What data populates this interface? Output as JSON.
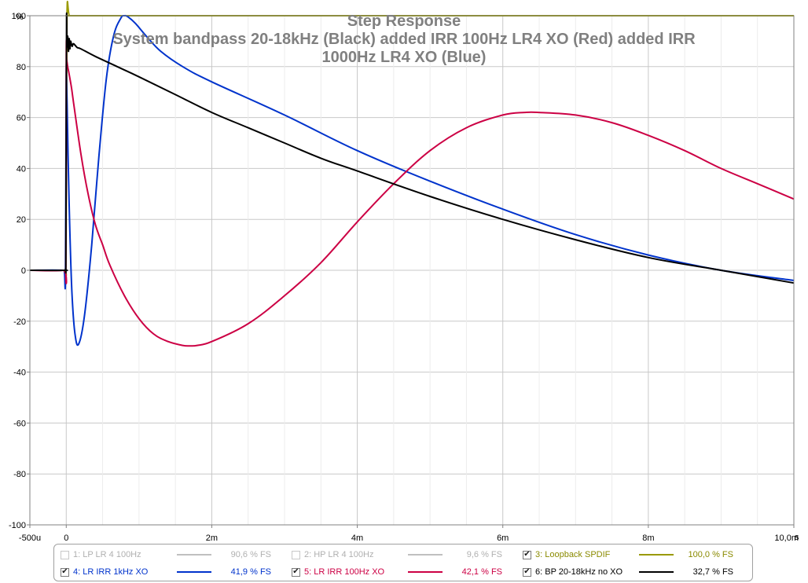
{
  "chart_data": {
    "type": "line",
    "title": "Step Response",
    "subtitle_line1": "System bandpass 20-18kHz (Black) added IRR 100Hz LR4 XO (Red) added IRR",
    "subtitle_line2": "1000Hz LR4 XO (Blue)",
    "ylabel": "%",
    "xlabel": "s",
    "xlim": [
      -500,
      10000
    ],
    "ylim": [
      -100,
      100
    ],
    "grid": true,
    "x_ticks": [
      {
        "value": -500,
        "label": "-500u"
      },
      {
        "value": 0,
        "label": "0"
      },
      {
        "value": 2000,
        "label": "2m"
      },
      {
        "value": 4000,
        "label": "4m"
      },
      {
        "value": 6000,
        "label": "6m"
      },
      {
        "value": 8000,
        "label": "8m"
      },
      {
        "value": 10000,
        "label": "10,0m"
      }
    ],
    "y_ticks": [
      {
        "value": 100,
        "label": "100"
      },
      {
        "value": 80,
        "label": "80"
      },
      {
        "value": 60,
        "label": "60"
      },
      {
        "value": 40,
        "label": "40"
      },
      {
        "value": 20,
        "label": "20"
      },
      {
        "value": 0,
        "label": "0"
      },
      {
        "value": -20,
        "label": "-20"
      },
      {
        "value": -40,
        "label": "-40"
      },
      {
        "value": -60,
        "label": "-60"
      },
      {
        "value": -80,
        "label": "-80"
      },
      {
        "value": -100,
        "label": "-100"
      }
    ],
    "series": [
      {
        "name": "3: Loopback SPDIF",
        "color": "#9a9a00",
        "x": [
          -500,
          -50,
          -10,
          0,
          10,
          50,
          200,
          1000,
          10000
        ],
        "y": [
          0,
          0,
          0,
          30,
          100,
          100,
          100,
          100,
          100
        ]
      },
      {
        "name": "4: LR IRR 1kHz XO",
        "color": "#0033cc",
        "x": [
          -500,
          -50,
          -25,
          -12,
          -5,
          0,
          5,
          12,
          25,
          50,
          80,
          120,
          170,
          250,
          350,
          450,
          550,
          650,
          750,
          800,
          850,
          950,
          1100,
          1300,
          1600,
          2000,
          3000,
          4000,
          5000,
          6000,
          7000,
          8000,
          9000,
          10000
        ],
        "y": [
          0,
          0,
          -1,
          -5,
          35,
          78,
          75,
          65,
          45,
          15,
          -10,
          -25,
          -29,
          -18,
          10,
          45,
          75,
          92,
          99,
          100,
          99.5,
          97,
          92,
          86,
          80,
          74,
          61,
          47,
          35,
          24,
          14,
          6,
          0,
          -4
        ]
      },
      {
        "name": "5: LR IRR 100Hz XO",
        "color": "#cc0044",
        "x": [
          -500,
          -50,
          -5,
          0,
          5,
          10,
          20,
          40,
          70,
          100,
          200,
          300,
          400,
          500,
          600,
          800,
          1000,
          1200,
          1400,
          1600,
          1700,
          1800,
          2000,
          2500,
          3000,
          3500,
          4000,
          4500,
          5000,
          5500,
          6000,
          6300,
          6500,
          7000,
          7500,
          8000,
          8500,
          9000,
          9500,
          10000
        ],
        "y": [
          0,
          0,
          2,
          84,
          83,
          82,
          80,
          77,
          72,
          66,
          46,
          30,
          18,
          10,
          2,
          -10,
          -19,
          -25,
          -28,
          -29.5,
          -29.7,
          -29.5,
          -28,
          -21,
          -10,
          3,
          19,
          34,
          47,
          56,
          61,
          62,
          62,
          61,
          58,
          53,
          47,
          40,
          34,
          28
        ]
      },
      {
        "name": "6: BP 20-18kHz no XO",
        "color": "#000000",
        "x": [
          -500,
          -30,
          -10,
          -5,
          0,
          5,
          10,
          20,
          30,
          40,
          50,
          60,
          80,
          100,
          150,
          200,
          400,
          700,
          1000,
          1500,
          2000,
          2500,
          3000,
          3500,
          4000,
          5000,
          6000,
          7000,
          8000,
          9000,
          10000
        ],
        "y": [
          0,
          0,
          0.5,
          5,
          60,
          100,
          88,
          92,
          86,
          91,
          87,
          90,
          88,
          89,
          87.5,
          87,
          84,
          80,
          76,
          69,
          62,
          56,
          50,
          44,
          39,
          29,
          20,
          12,
          5,
          0,
          -5
        ]
      }
    ]
  },
  "legend": {
    "items": [
      {
        "label": "1: LP LR 4 100Hz",
        "value": "90,6 % FS",
        "checked": false,
        "color": "#c0c0c0",
        "text_color": "#b0b0b0"
      },
      {
        "label": "2: HP LR 4 100Hz",
        "value": "9,6 % FS",
        "checked": false,
        "color": "#c0c0c0",
        "text_color": "#b0b0b0"
      },
      {
        "label": "3: Loopback SPDIF",
        "value": "100,0 % FS",
        "checked": true,
        "color": "#9a9a00",
        "text_color": "#8a8a00"
      },
      {
        "label": "4: LR IRR 1kHz XO",
        "value": "41,9 % FS",
        "checked": true,
        "color": "#0033cc",
        "text_color": "#0033cc"
      },
      {
        "label": "5: LR IRR 100Hz XO",
        "value": "42,1 % FS",
        "checked": true,
        "color": "#cc0044",
        "text_color": "#cc0044"
      },
      {
        "label": "6: BP 20-18kHz no XO",
        "value": "32,7 % FS",
        "checked": true,
        "color": "#000000",
        "text_color": "#000000"
      }
    ]
  }
}
